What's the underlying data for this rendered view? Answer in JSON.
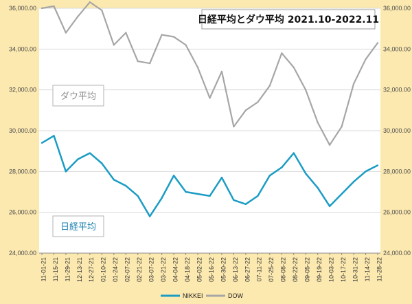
{
  "chart_data": {
    "type": "line",
    "title": "日経平均とダウ平均 2021.10-2022.11",
    "categories": [
      "11-01-21",
      "11-15-21",
      "11-29-21",
      "12-13-21",
      "12-27-21",
      "01-10-22",
      "01-24-22",
      "02-07-22",
      "02-21-22",
      "03-07-22",
      "03-21-22",
      "04-04-22",
      "04-18-22",
      "05-02-22",
      "05-16-22",
      "05-30-22",
      "06-13-22",
      "06-27-22",
      "07-11-22",
      "07-25-22",
      "08-08-22",
      "08-22-22",
      "09-05-22",
      "09-19-22",
      "10-03-22",
      "10-17-22",
      "10-31-22",
      "11-14-22",
      "11-28-22"
    ],
    "y_left": {
      "min": 24000,
      "max": 36000,
      "step": 2000,
      "tick_labels": [
        "24,000.00",
        "26,000.00",
        "28,000.00",
        "30,000.00",
        "32,000.00",
        "34,000.00",
        "36,000.00"
      ]
    },
    "y_right": {
      "min": 24000,
      "max": 36000,
      "step": 2000,
      "tick_labels": [
        "24,000.00",
        "26,000.00",
        "28,000.00",
        "30,000.00",
        "32,000.00",
        "34,000.00",
        "36,000.00"
      ]
    },
    "series": [
      {
        "name": "NIKKEI",
        "label": "日経平均",
        "color": "#1b9cc4",
        "values": [
          29400,
          29750,
          28000,
          28600,
          28900,
          28400,
          27600,
          27300,
          26800,
          25800,
          26700,
          27800,
          27000,
          26900,
          26800,
          27700,
          26600,
          26400,
          26800,
          27800,
          28200,
          28900,
          27900,
          27200,
          26300,
          26900,
          27500,
          28000,
          28300
        ]
      },
      {
        "name": "DOW",
        "label": "ダウ平均",
        "color": "#a6a6a6",
        "values": [
          36000,
          36100,
          34800,
          35600,
          36300,
          35900,
          34200,
          34800,
          33400,
          33300,
          34700,
          34600,
          34200,
          33100,
          31600,
          32900,
          30200,
          31000,
          31400,
          32200,
          33800,
          33100,
          32000,
          30400,
          29300,
          30200,
          32300,
          33500,
          34300
        ]
      }
    ]
  }
}
